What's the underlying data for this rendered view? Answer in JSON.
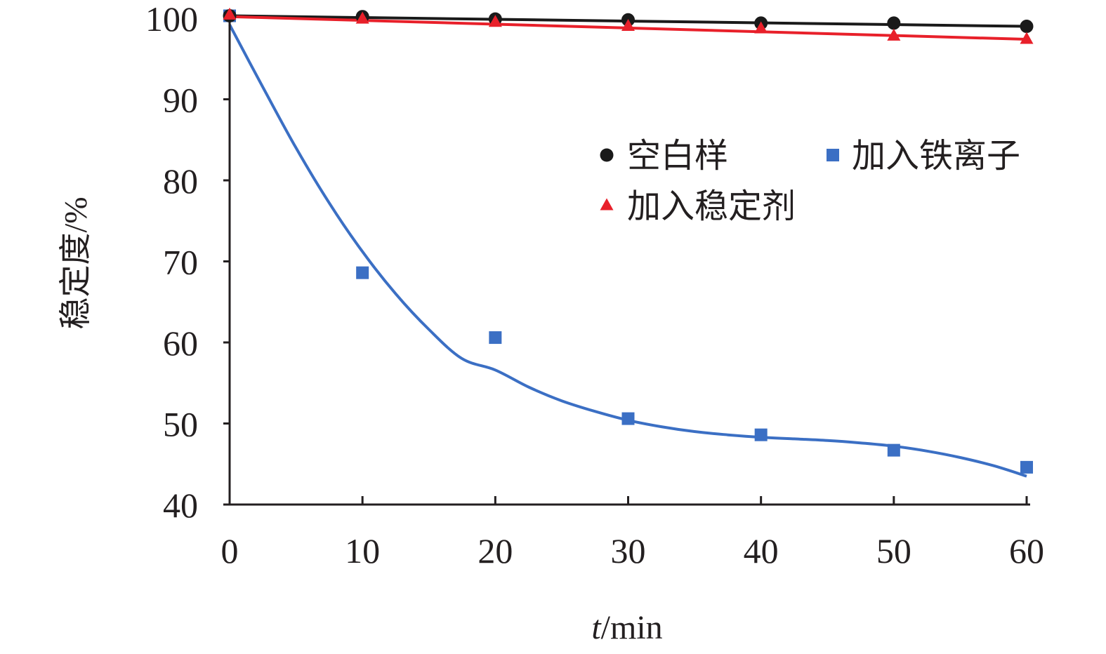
{
  "chart_data": {
    "type": "scatter",
    "title": "",
    "xlabel_italic": "t",
    "xlabel_rest": "/min",
    "ylabel": "稳定度/%",
    "xlim": [
      0,
      60
    ],
    "ylim": [
      40,
      100
    ],
    "xticks": [
      0,
      10,
      20,
      30,
      40,
      50,
      60
    ],
    "yticks": [
      40,
      50,
      60,
      70,
      80,
      90,
      100
    ],
    "legend_position": "center-right",
    "series": [
      {
        "name": "空白样",
        "marker": "circle",
        "color": "#1a1a1a",
        "x": [
          0,
          10,
          20,
          30,
          40,
          50,
          60
        ],
        "y": [
          100.3,
          100.2,
          99.9,
          99.8,
          99.4,
          99.4,
          99.0
        ],
        "fit": [
          [
            0,
            100.3
          ],
          [
            60,
            99.0
          ]
        ]
      },
      {
        "name": "加入铁离子",
        "marker": "square",
        "color": "#3b6fc4",
        "x": [
          0,
          10,
          20,
          30,
          40,
          50,
          60
        ],
        "y": [
          100.3,
          68.6,
          60.6,
          50.6,
          48.6,
          46.7,
          44.6
        ],
        "fit": [
          [
            0,
            99.2
          ],
          [
            2.5,
            91.5
          ],
          [
            5,
            84.0
          ],
          [
            7.5,
            77.2
          ],
          [
            10,
            71.2
          ],
          [
            12.5,
            66.0
          ],
          [
            15,
            61.6
          ],
          [
            17.5,
            58.0
          ],
          [
            20,
            56.6
          ],
          [
            22.5,
            54.5
          ],
          [
            25,
            52.8
          ],
          [
            27.5,
            51.5
          ],
          [
            30,
            50.4
          ],
          [
            32.5,
            49.6
          ],
          [
            35,
            49.0
          ],
          [
            37.5,
            48.6
          ],
          [
            40,
            48.3
          ],
          [
            42.5,
            48.1
          ],
          [
            45,
            47.9
          ],
          [
            47.5,
            47.6
          ],
          [
            50,
            47.2
          ],
          [
            52.5,
            46.6
          ],
          [
            55,
            45.8
          ],
          [
            57.5,
            44.8
          ],
          [
            60,
            43.5
          ]
        ]
      },
      {
        "name": "加入稳定剂",
        "marker": "triangle",
        "color": "#e8202a",
        "x": [
          0,
          10,
          20,
          30,
          40,
          50,
          60
        ],
        "y": [
          100.4,
          99.9,
          99.5,
          99.0,
          98.7,
          97.8,
          97.4
        ],
        "fit": [
          [
            0,
            100.2
          ],
          [
            60,
            97.4
          ]
        ]
      }
    ]
  }
}
